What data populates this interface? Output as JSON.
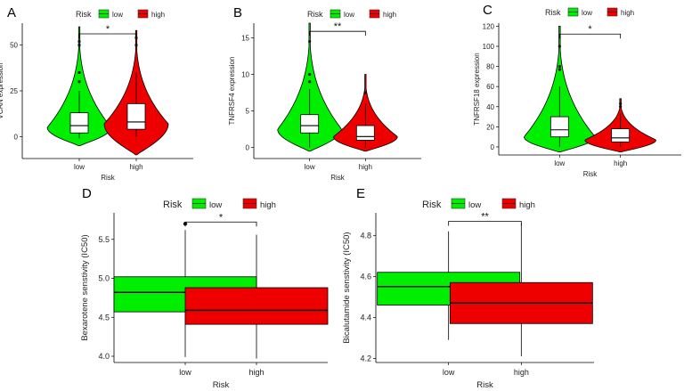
{
  "colors": {
    "low": "#00ee00",
    "high": "#ee0000",
    "line": "#000000"
  },
  "chart_data": [
    {
      "panel": "A",
      "type": "violin",
      "title": "",
      "categories": [
        "low",
        "high"
      ],
      "xlabel": "Risk",
      "ylabel": "VCAN expression",
      "yticks": [
        0,
        25,
        50
      ],
      "ylim": [
        -12,
        62
      ],
      "legend": {
        "title": "Risk",
        "entries": [
          "low",
          "high"
        ],
        "position": "top"
      },
      "significance": "*",
      "series": [
        {
          "violin": {
            "min": -5,
            "max": 60,
            "peak": 5
          },
          "box": {
            "q1": 2,
            "median": 6,
            "q3": 13,
            "whisker_low": -1,
            "whisker_high": 25
          },
          "outliers": [
            30,
            35,
            50,
            52
          ]
        },
        {
          "violin": {
            "min": -10,
            "max": 58,
            "peak": 7
          },
          "box": {
            "q1": 4,
            "median": 8,
            "q3": 18,
            "whisker_low": 0,
            "whisker_high": 35
          },
          "outliers": [
            50,
            54
          ]
        }
      ]
    },
    {
      "panel": "B",
      "type": "violin",
      "title": "",
      "categories": [
        "low",
        "high"
      ],
      "xlabel": "Risk",
      "ylabel": "TNFRSF4 expression",
      "yticks": [
        0,
        5,
        10,
        15
      ],
      "ylim": [
        -1.5,
        17
      ],
      "legend": {
        "title": "Risk",
        "entries": [
          "low",
          "high"
        ],
        "position": "top"
      },
      "significance": "**",
      "series": [
        {
          "violin": {
            "min": -0.5,
            "max": 17,
            "peak": 2.5
          },
          "box": {
            "q1": 2,
            "median": 3,
            "q3": 4.5,
            "whisker_low": 0,
            "whisker_high": 8
          },
          "outliers": [
            9,
            10,
            14.5
          ]
        },
        {
          "violin": {
            "min": -0.5,
            "max": 10,
            "peak": 1.5
          },
          "box": {
            "q1": 1,
            "median": 1.5,
            "q3": 3,
            "whisker_low": 0,
            "whisker_high": 6
          },
          "outliers": [
            7.5
          ]
        }
      ]
    },
    {
      "panel": "C",
      "type": "violin",
      "title": "",
      "categories": [
        "low",
        "high"
      ],
      "xlabel": "Risk",
      "ylabel": "TNFRSF18 expression",
      "yticks": [
        0,
        20,
        40,
        60,
        80,
        100,
        120
      ],
      "ylim": [
        -8,
        123
      ],
      "legend": {
        "title": "Risk",
        "entries": [
          "low",
          "high"
        ],
        "position": "top"
      },
      "significance": "*",
      "series": [
        {
          "violin": {
            "min": -5,
            "max": 120,
            "peak": 10
          },
          "box": {
            "q1": 10,
            "median": 17,
            "q3": 30,
            "whisker_low": 0,
            "whisker_high": 60
          },
          "outliers": [
            77,
            80,
            100
          ]
        },
        {
          "violin": {
            "min": -5,
            "max": 48,
            "peak": 7
          },
          "box": {
            "q1": 5,
            "median": 9,
            "q3": 18,
            "whisker_low": 0,
            "whisker_high": 33
          },
          "outliers": [
            40,
            43
          ]
        }
      ]
    },
    {
      "panel": "D",
      "type": "box",
      "title": "",
      "categories": [
        "low",
        "high"
      ],
      "xlabel": "Risk",
      "ylabel": "Bexarotene senstivity (IC50)",
      "yticks": [
        4.0,
        4.5,
        5.0,
        5.5
      ],
      "ytick_labels": [
        "4.0",
        "4.5",
        "5.0",
        "5.5"
      ],
      "ylim": [
        3.92,
        5.84
      ],
      "legend": {
        "title": "Risk",
        "entries": [
          "low",
          "high"
        ],
        "position": "top"
      },
      "significance": "*",
      "series": [
        {
          "box": {
            "q1": 4.57,
            "median": 4.82,
            "q3": 5.02,
            "whisker_low": 3.99,
            "whisker_high": 5.62
          },
          "outliers": [
            5.7
          ]
        },
        {
          "box": {
            "q1": 4.41,
            "median": 4.59,
            "q3": 4.88,
            "whisker_low": 3.97,
            "whisker_high": 5.56
          },
          "outliers": []
        }
      ]
    },
    {
      "panel": "E",
      "type": "box",
      "title": "",
      "categories": [
        "low",
        "high"
      ],
      "xlabel": "Risk",
      "ylabel": "Bicalutamide senstivity (IC50)",
      "yticks": [
        4.2,
        4.4,
        4.6,
        4.8
      ],
      "ytick_labels": [
        "4.2",
        "4.4",
        "4.6",
        "4.8"
      ],
      "ylim": [
        4.18,
        4.91
      ],
      "legend": {
        "title": "Risk",
        "entries": [
          "low",
          "high"
        ],
        "position": "top"
      },
      "significance": "**",
      "series": [
        {
          "box": {
            "q1": 4.46,
            "median": 4.55,
            "q3": 4.62,
            "whisker_low": 4.29,
            "whisker_high": 4.82
          },
          "outliers": []
        },
        {
          "box": {
            "q1": 4.37,
            "median": 4.47,
            "q3": 4.57,
            "whisker_low": 4.21,
            "whisker_high": 4.86
          },
          "outliers": []
        }
      ]
    }
  ]
}
